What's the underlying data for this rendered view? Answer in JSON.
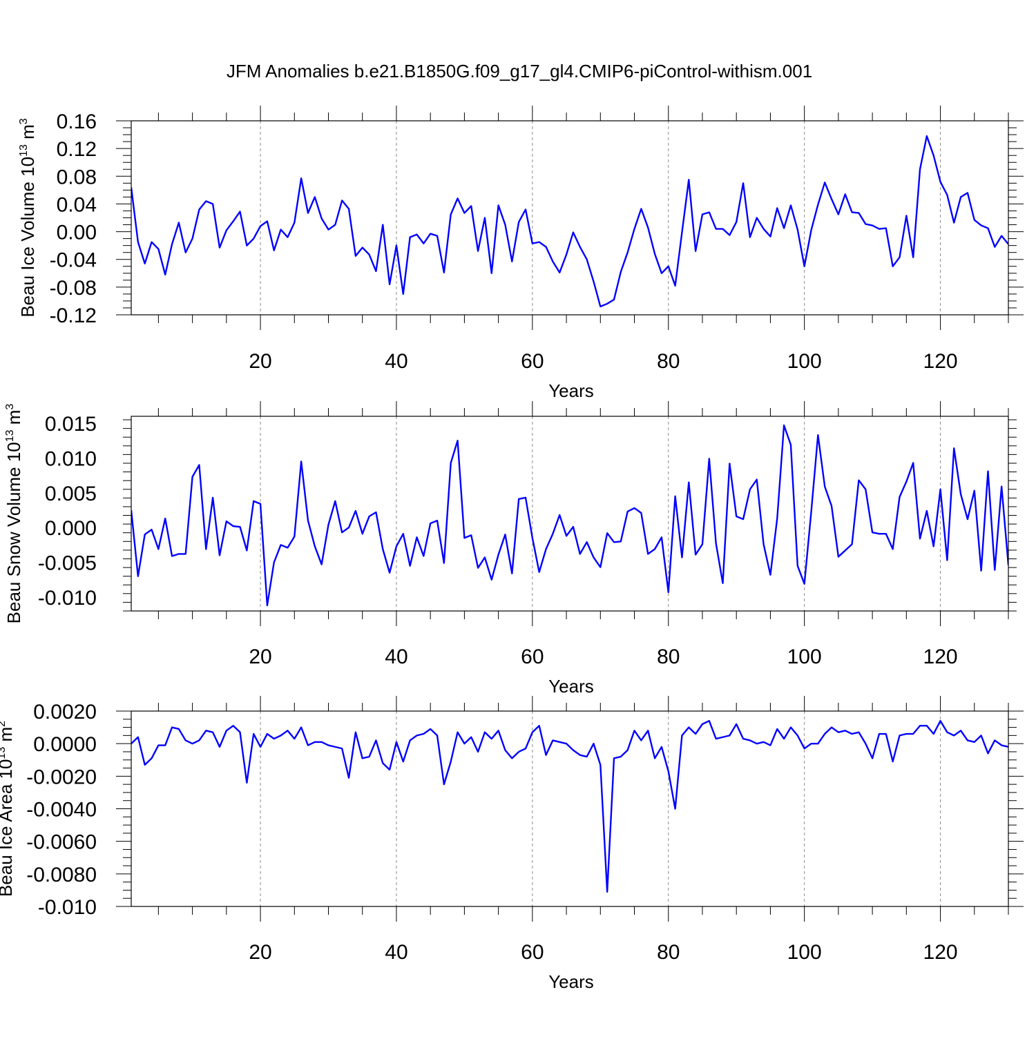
{
  "title": "JFM Anomalies b.e21.B1850G.f09_g17_gl4.CMIP6-piControl-withism.001",
  "colors": {
    "line": "#0000ff",
    "grid": "#888888",
    "axis": "#000000"
  },
  "chart_data": [
    {
      "type": "line",
      "ylabel": "Beau Ice Volume 10",
      "ylabel_sup": "13",
      "ylabel_unit": "m",
      "ylabel_unit_sup": "3",
      "xlabel": "Years",
      "xlim": [
        1,
        130
      ],
      "ylim": [
        -0.12,
        0.16
      ],
      "y_major_ticks": [
        -0.12,
        -0.08,
        -0.04,
        0.0,
        0.04,
        0.08,
        0.12,
        0.16
      ],
      "y_tick_labels": [
        "-0.12",
        "-0.08",
        "-0.04",
        "0.00",
        "0.04",
        "0.08",
        "0.12",
        "0.16"
      ],
      "x_ticks": [
        20,
        40,
        60,
        80,
        100,
        120
      ],
      "x_tick_labels": [
        "20",
        "40",
        "60",
        "80",
        "100",
        "120"
      ],
      "grid_x": true,
      "x": [
        1,
        2,
        3,
        4,
        5,
        6,
        7,
        8,
        9,
        10,
        11,
        12,
        13,
        14,
        15,
        16,
        17,
        18,
        19,
        20,
        21,
        22,
        23,
        24,
        25,
        26,
        27,
        28,
        29,
        30,
        31,
        32,
        33,
        34,
        35,
        36,
        37,
        38,
        39,
        40,
        41,
        42,
        43,
        44,
        45,
        46,
        47,
        48,
        49,
        50,
        51,
        52,
        53,
        54,
        55,
        56,
        57,
        58,
        59,
        60,
        61,
        62,
        63,
        64,
        65,
        66,
        67,
        68,
        69,
        70,
        71,
        72,
        73,
        74,
        75,
        76,
        77,
        78,
        79,
        80,
        81,
        82,
        83,
        84,
        85,
        86,
        87,
        88,
        89,
        90,
        91,
        92,
        93,
        94,
        95,
        96,
        97,
        98,
        99,
        100,
        101,
        102,
        103,
        104,
        105,
        106,
        107,
        108,
        109,
        110,
        111,
        112,
        113,
        114,
        115,
        116,
        117,
        118,
        119,
        120,
        121,
        122,
        123,
        124,
        125,
        126,
        127,
        128,
        129,
        130
      ],
      "y": [
        0.064,
        -0.015,
        -0.046,
        -0.015,
        -0.025,
        -0.062,
        -0.018,
        0.013,
        -0.03,
        -0.01,
        0.032,
        0.044,
        0.04,
        -0.023,
        0.002,
        0.015,
        0.029,
        -0.02,
        -0.01,
        0.008,
        0.015,
        -0.027,
        0.003,
        -0.008,
        0.013,
        0.077,
        0.027,
        0.05,
        0.019,
        0.003,
        0.01,
        0.045,
        0.033,
        -0.035,
        -0.023,
        -0.033,
        -0.057,
        0.01,
        -0.076,
        -0.02,
        -0.09,
        -0.008,
        -0.004,
        -0.017,
        -0.003,
        -0.006,
        -0.059,
        0.025,
        0.048,
        0.027,
        0.037,
        -0.028,
        0.02,
        -0.06,
        0.038,
        0.01,
        -0.043,
        0.014,
        0.032,
        -0.017,
        -0.015,
        -0.022,
        -0.043,
        -0.059,
        -0.033,
        -0.001,
        -0.022,
        -0.04,
        -0.072,
        -0.108,
        -0.104,
        -0.098,
        -0.058,
        -0.03,
        0.004,
        0.033,
        0.006,
        -0.032,
        -0.06,
        -0.05,
        -0.078,
        -0.001,
        0.075,
        -0.028,
        0.025,
        0.028,
        0.004,
        0.004,
        -0.005,
        0.014,
        0.07,
        -0.008,
        0.02,
        0.004,
        -0.007,
        0.034,
        0.005,
        0.038,
        0.003,
        -0.05,
        0.002,
        0.039,
        0.071,
        0.047,
        0.025,
        0.054,
        0.028,
        0.027,
        0.011,
        0.009,
        0.004,
        0.005,
        -0.05,
        -0.037,
        0.023,
        -0.037,
        0.09,
        0.138,
        0.11,
        0.072,
        0.053,
        0.013,
        0.05,
        0.056,
        0.017,
        0.009,
        0.005,
        -0.022,
        -0.006,
        -0.018
      ]
    },
    {
      "type": "line",
      "ylabel": "Beau Snow Volume 10",
      "ylabel_sup": "13",
      "ylabel_unit": "m",
      "ylabel_unit_sup": "3",
      "xlabel": "Years",
      "xlim": [
        1,
        130
      ],
      "ylim": [
        -0.012,
        0.016
      ],
      "y_major_ticks": [
        -0.01,
        -0.005,
        0.0,
        0.005,
        0.01,
        0.015
      ],
      "y_tick_labels": [
        "-0.010",
        "-0.005",
        "0.000",
        "0.005",
        "0.010",
        "0.015"
      ],
      "x_ticks": [
        20,
        40,
        60,
        80,
        100,
        120
      ],
      "x_tick_labels": [
        "20",
        "40",
        "60",
        "80",
        "100",
        "120"
      ],
      "grid_x": true,
      "x": [
        1,
        2,
        3,
        4,
        5,
        6,
        7,
        8,
        9,
        10,
        11,
        12,
        13,
        14,
        15,
        16,
        17,
        18,
        19,
        20,
        21,
        22,
        23,
        24,
        25,
        26,
        27,
        28,
        29,
        30,
        31,
        32,
        33,
        34,
        35,
        36,
        37,
        38,
        39,
        40,
        41,
        42,
        43,
        44,
        45,
        46,
        47,
        48,
        49,
        50,
        51,
        52,
        53,
        54,
        55,
        56,
        57,
        58,
        59,
        60,
        61,
        62,
        63,
        64,
        65,
        66,
        67,
        68,
        69,
        70,
        71,
        72,
        73,
        74,
        75,
        76,
        77,
        78,
        79,
        80,
        81,
        82,
        83,
        84,
        85,
        86,
        87,
        88,
        89,
        90,
        91,
        92,
        93,
        94,
        95,
        96,
        97,
        98,
        99,
        100,
        101,
        102,
        103,
        104,
        105,
        106,
        107,
        108,
        109,
        110,
        111,
        112,
        113,
        114,
        115,
        116,
        117,
        118,
        119,
        120,
        121,
        122,
        123,
        124,
        125,
        126,
        127,
        128,
        129,
        130
      ],
      "y": [
        0.0025,
        -0.007,
        -0.001,
        -0.0003,
        -0.0031,
        0.0013,
        -0.0041,
        -0.0038,
        -0.0038,
        0.0073,
        0.009,
        -0.0031,
        0.0043,
        -0.004,
        0.0009,
        0.0002,
        0.0001,
        -0.0033,
        0.0038,
        0.0034,
        -0.0112,
        -0.005,
        -0.0025,
        -0.0029,
        -0.0013,
        0.0095,
        0.001,
        -0.0027,
        -0.0053,
        0.0004,
        0.0038,
        -0.0007,
        0.0,
        0.0024,
        -0.0009,
        0.0016,
        0.0022,
        -0.0031,
        -0.0065,
        -0.0027,
        -0.0009,
        -0.0055,
        -0.0014,
        -0.0041,
        0.0006,
        0.001,
        -0.0051,
        0.0093,
        0.0125,
        -0.0015,
        -0.0011,
        -0.0058,
        -0.0043,
        -0.0075,
        -0.0039,
        -0.001,
        -0.0066,
        0.0041,
        0.0043,
        -0.0015,
        -0.0064,
        -0.0031,
        -0.0009,
        0.0018,
        -0.0012,
        0.0001,
        -0.0038,
        -0.0021,
        -0.0043,
        -0.0057,
        -0.0008,
        -0.0021,
        -0.002,
        0.0023,
        0.0028,
        0.0021,
        -0.0038,
        -0.0031,
        -0.0014,
        -0.0093,
        0.0045,
        -0.0043,
        0.0065,
        -0.0039,
        -0.0024,
        0.0099,
        -0.0023,
        -0.008,
        0.0092,
        0.0016,
        0.0012,
        0.0055,
        0.0069,
        -0.0024,
        -0.0068,
        0.0013,
        0.0147,
        0.0119,
        -0.0055,
        -0.0081,
        0.0022,
        0.0133,
        0.0059,
        0.0031,
        -0.0042,
        -0.0033,
        -0.0024,
        0.0068,
        0.0055,
        -0.0007,
        -0.0009,
        -0.0009,
        -0.0031,
        0.0044,
        0.0066,
        0.0093,
        -0.0016,
        0.0024,
        -0.0027,
        0.0055,
        -0.0047,
        0.0114,
        0.0048,
        0.0012,
        0.0053,
        -0.0062,
        0.0081,
        -0.0061,
        0.0059,
        -0.0054
      ]
    },
    {
      "type": "line",
      "ylabel": "Beau Ice Area 10",
      "ylabel_sup": "13",
      "ylabel_unit": "m",
      "ylabel_unit_sup": "2",
      "xlabel": "Years",
      "xlim": [
        1,
        130
      ],
      "ylim": [
        -0.01,
        0.002
      ],
      "y_major_ticks": [
        -0.01,
        -0.008,
        -0.006,
        -0.004,
        -0.002,
        0.0,
        0.002
      ],
      "y_tick_labels": [
        "-0.010",
        "-0.0080",
        "-0.0060",
        "-0.0040",
        "-0.0020",
        "0.0000",
        "0.0020"
      ],
      "x_ticks": [
        20,
        40,
        60,
        80,
        100,
        120
      ],
      "x_tick_labels": [
        "20",
        "40",
        "60",
        "80",
        "100",
        "120"
      ],
      "grid_x": true,
      "x": [
        1,
        2,
        3,
        4,
        5,
        6,
        7,
        8,
        9,
        10,
        11,
        12,
        13,
        14,
        15,
        16,
        17,
        18,
        19,
        20,
        21,
        22,
        23,
        24,
        25,
        26,
        27,
        28,
        29,
        30,
        31,
        32,
        33,
        34,
        35,
        36,
        37,
        38,
        39,
        40,
        41,
        42,
        43,
        44,
        45,
        46,
        47,
        48,
        49,
        50,
        51,
        52,
        53,
        54,
        55,
        56,
        57,
        58,
        59,
        60,
        61,
        62,
        63,
        64,
        65,
        66,
        67,
        68,
        69,
        70,
        71,
        72,
        73,
        74,
        75,
        76,
        77,
        78,
        79,
        80,
        81,
        82,
        83,
        84,
        85,
        86,
        87,
        88,
        89,
        90,
        91,
        92,
        93,
        94,
        95,
        96,
        97,
        98,
        99,
        100,
        101,
        102,
        103,
        104,
        105,
        106,
        107,
        108,
        109,
        110,
        111,
        112,
        113,
        114,
        115,
        116,
        117,
        118,
        119,
        120,
        121,
        122,
        123,
        124,
        125,
        126,
        127,
        128,
        129,
        130
      ],
      "y": [
        0.0,
        0.0004,
        -0.0013,
        -0.0009,
        -0.0001,
        -0.0001,
        0.001,
        0.0009,
        0.0002,
        0.0,
        0.0002,
        0.0008,
        0.0007,
        -0.0002,
        0.0008,
        0.0011,
        0.0007,
        -0.0024,
        0.0006,
        -0.0002,
        0.0006,
        0.0003,
        0.0005,
        0.0008,
        0.0003,
        0.001,
        -0.0001,
        0.0001,
        0.0001,
        -0.0001,
        -0.0002,
        -0.0003,
        -0.0021,
        0.0007,
        -0.0009,
        -0.0008,
        0.0002,
        -0.0012,
        -0.0016,
        0.0001,
        -0.0011,
        0.0002,
        0.0005,
        0.0006,
        0.0009,
        0.0005,
        -0.0025,
        -0.0011,
        0.0007,
        0.0,
        0.0004,
        -0.0005,
        0.0007,
        0.0003,
        0.0008,
        -0.0004,
        -0.0009,
        -0.0005,
        -0.0003,
        0.0007,
        0.0011,
        -0.0007,
        0.0002,
        0.0001,
        0.0,
        -0.0004,
        -0.0007,
        -0.0008,
        0.0,
        -0.0013,
        -0.0091,
        -0.0009,
        -0.0008,
        -0.0004,
        0.0008,
        0.0002,
        0.0008,
        -0.0009,
        -0.0002,
        -0.0017,
        -0.004,
        0.0005,
        0.001,
        0.0006,
        0.0012,
        0.0014,
        0.0003,
        0.0004,
        0.0005,
        0.0012,
        0.0003,
        0.0002,
        0.0,
        0.0001,
        -0.0001,
        0.0009,
        0.0003,
        0.001,
        0.0005,
        -0.0003,
        0.0,
        0.0,
        0.0006,
        0.001,
        0.0007,
        0.0008,
        0.0006,
        0.0007,
        0.0,
        -0.0009,
        0.0006,
        0.0006,
        -0.0011,
        0.0005,
        0.0006,
        0.0006,
        0.0011,
        0.0011,
        0.0006,
        0.0014,
        0.0007,
        0.0005,
        0.0008,
        0.0002,
        0.0001,
        0.0005,
        -0.0006,
        0.0002,
        -0.0001,
        -0.0002
      ]
    }
  ]
}
